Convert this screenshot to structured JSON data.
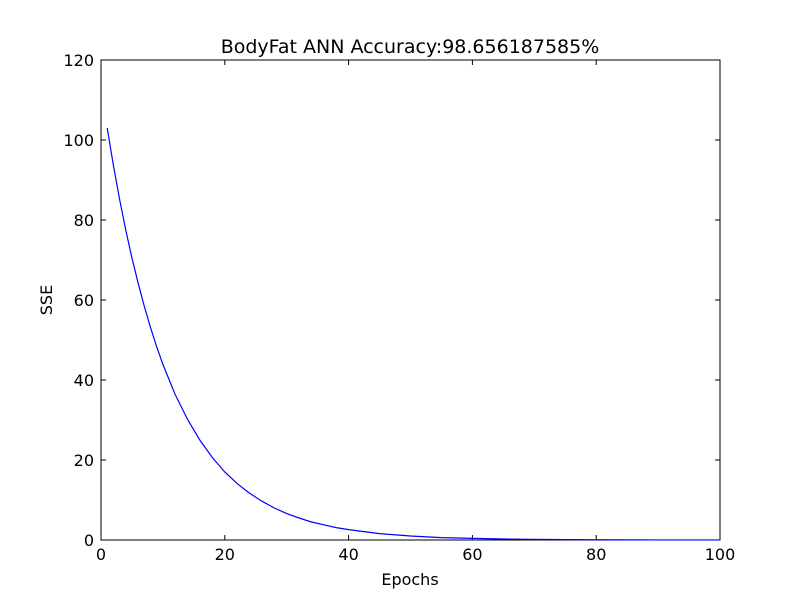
{
  "chart_data": {
    "type": "line",
    "title": "BodyFat ANN Accuracy:98.656187585%",
    "xlabel": "Epochs",
    "ylabel": "SSE",
    "xlim": [
      0,
      100
    ],
    "ylim": [
      0,
      120
    ],
    "xticks": [
      0,
      20,
      40,
      60,
      80,
      100
    ],
    "yticks": [
      0,
      20,
      40,
      60,
      80,
      100,
      120
    ],
    "xtick_labels": [
      "0",
      "20",
      "40",
      "60",
      "80",
      "100"
    ],
    "ytick_labels": [
      "0",
      "20",
      "40",
      "60",
      "80",
      "100",
      "120"
    ],
    "grid": false,
    "line_color": "#0000ff",
    "series": [
      {
        "x": [
          1,
          2,
          3,
          4,
          5,
          6,
          7,
          8,
          9,
          10,
          12,
          14,
          16,
          18,
          20,
          22,
          24,
          26,
          28,
          30,
          32,
          34,
          36,
          38,
          40,
          45,
          50,
          55,
          60,
          65,
          70,
          75,
          80,
          85,
          90,
          95,
          100
        ],
        "values": [
          103.0,
          93.7,
          85.2,
          77.5,
          70.5,
          64.2,
          58.4,
          53.1,
          48.3,
          43.9,
          36.3,
          30.1,
          24.9,
          20.6,
          17.0,
          14.1,
          11.7,
          9.7,
          8.0,
          6.6,
          5.5,
          4.5,
          3.8,
          3.1,
          2.6,
          1.6,
          1.0,
          0.6,
          0.4,
          0.25,
          0.15,
          0.1,
          0.06,
          0.04,
          0.02,
          0.01,
          0.01
        ]
      }
    ]
  }
}
